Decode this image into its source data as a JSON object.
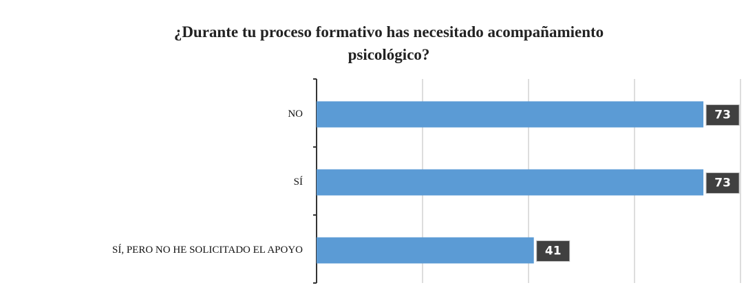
{
  "chart_data": {
    "type": "hbar",
    "title": "¿Durante tu proceso formativo has necesitado acompañamiento psicológico?",
    "categories": [
      "NO",
      "SÍ",
      "SÍ, PERO NO HE SOLICITADO EL APOYO"
    ],
    "values": [
      73,
      73,
      41
    ],
    "color": "#5b9bd5",
    "xlim": [
      0,
      80
    ],
    "xticks": [
      0,
      20,
      40,
      60,
      80
    ],
    "grid": true
  }
}
